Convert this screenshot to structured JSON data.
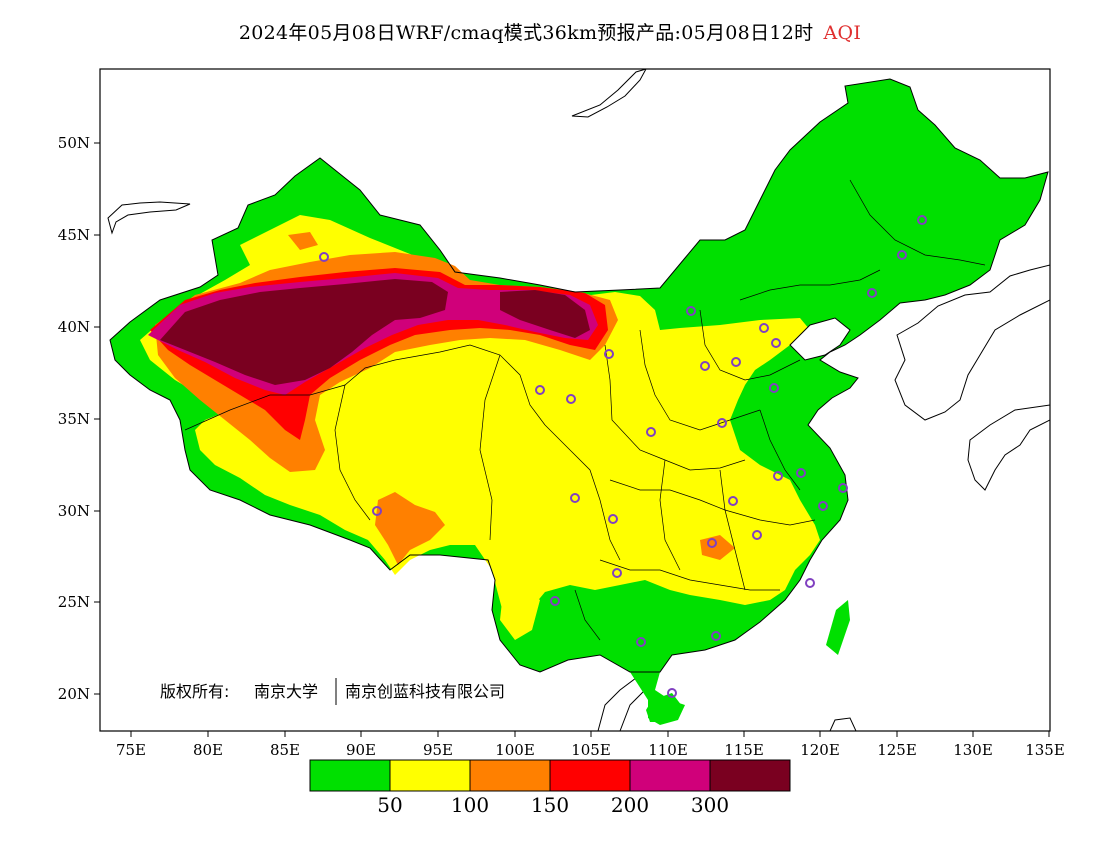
{
  "title": {
    "main": "2024年05月08日WRF/cmaq模式36km预报产品:05月08日12时",
    "variable": "AQI"
  },
  "lat_ticks": [
    "50N",
    "45N",
    "40N",
    "35N",
    "30N",
    "25N",
    "20N"
  ],
  "lon_ticks": [
    "75E",
    "80E",
    "85E",
    "90E",
    "95E",
    "100E",
    "105E",
    "110E",
    "115E",
    "120E",
    "125E",
    "130E",
    "135E"
  ],
  "credit": {
    "prefix": "版权所有:",
    "org1": "南京大学",
    "org2": "南京创蓝科技有限公司"
  },
  "colorbar": {
    "colors": [
      "#00e000",
      "#ffff00",
      "#ff8000",
      "#ff0000",
      "#d0007a",
      "#7a0020"
    ],
    "labels": [
      "50",
      "100",
      "150",
      "200",
      "300"
    ]
  },
  "colors": {
    "ocean": "#ffffff",
    "frame": "#000000",
    "marker": "#8040c0"
  }
}
